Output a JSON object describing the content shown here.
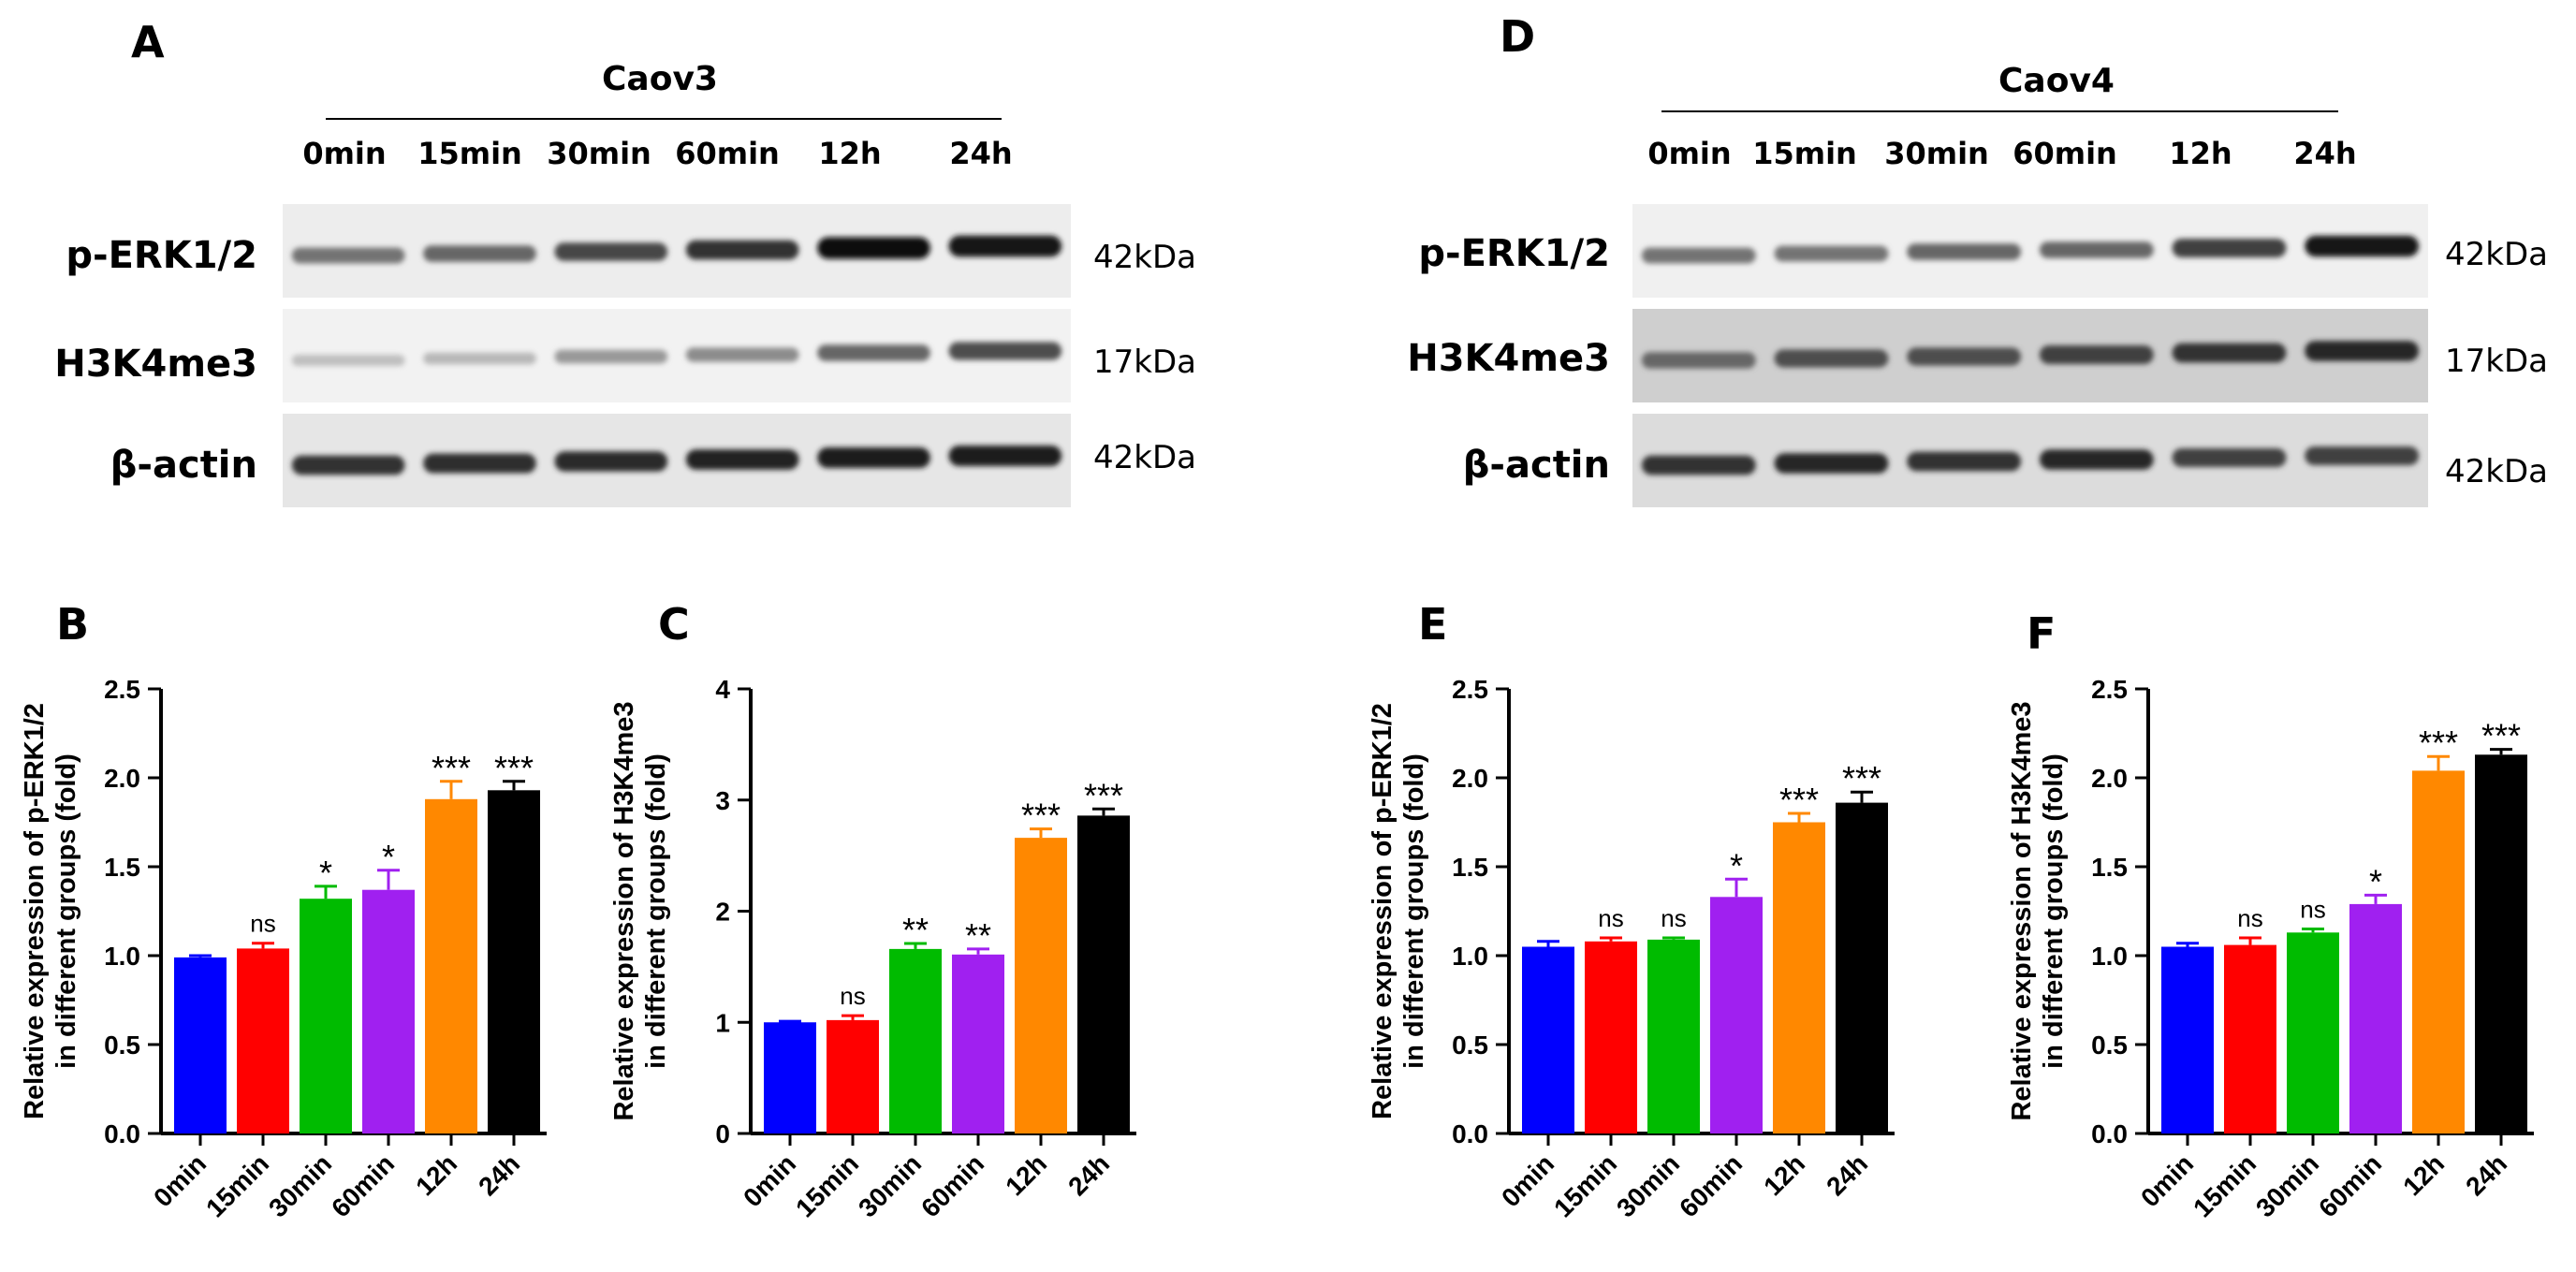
{
  "western_blots": [
    {
      "panel": "A",
      "cell_line": "Caov3",
      "lanes": [
        "0min",
        "15min",
        "30min",
        "60min",
        "12h",
        "24h"
      ],
      "rows": [
        {
          "protein": "p-ERK1/2",
          "size": "42kDa",
          "background": "#ededed",
          "intensity": [
            0.55,
            0.6,
            0.72,
            0.8,
            0.95,
            0.92
          ]
        },
        {
          "protein": "H3K4me3",
          "size": "17kDa",
          "background": "#f2f2f2",
          "intensity": [
            0.25,
            0.28,
            0.4,
            0.45,
            0.6,
            0.7
          ]
        },
        {
          "protein": "β-actin",
          "size": "42kDa",
          "background": "#e6e6e6",
          "intensity": [
            0.8,
            0.82,
            0.84,
            0.86,
            0.88,
            0.88
          ]
        }
      ]
    },
    {
      "panel": "D",
      "cell_line": "Caov4",
      "lanes": [
        "0min",
        "15min",
        "30min",
        "60min",
        "12h",
        "24h"
      ],
      "rows": [
        {
          "protein": "p-ERK1/2",
          "size": "42kDa",
          "background": "#f0f0f0",
          "intensity": [
            0.55,
            0.55,
            0.6,
            0.6,
            0.75,
            0.9
          ]
        },
        {
          "protein": "H3K4me3",
          "size": "17kDa",
          "background": "#cfcfcf",
          "intensity": [
            0.6,
            0.7,
            0.7,
            0.75,
            0.8,
            0.85
          ]
        },
        {
          "protein": "β-actin",
          "size": "42kDa",
          "background": "#dcdcdc",
          "intensity": [
            0.8,
            0.85,
            0.8,
            0.85,
            0.75,
            0.75
          ]
        }
      ]
    }
  ],
  "bar_colors": [
    "#0000ff",
    "#ff0000",
    "#00bb00",
    "#a020f0",
    "#ff8800",
    "#000000"
  ],
  "chart_data": [
    {
      "panel": "B",
      "type": "bar",
      "categories": [
        "0min",
        "15min",
        "30min",
        "60min",
        "12h",
        "24h"
      ],
      "values": [
        0.99,
        1.04,
        1.32,
        1.37,
        1.88,
        1.93
      ],
      "errors": [
        0.01,
        0.03,
        0.07,
        0.11,
        0.1,
        0.05
      ],
      "significance": [
        "",
        "ns",
        "*",
        "*",
        "***",
        "***"
      ],
      "ylabel_line1": "Relative expression of  p-ERK1/2",
      "ylabel_line2": "in different groups (fold)",
      "ylim": [
        0,
        2.5
      ],
      "ytick_labels": [
        "0.0",
        "0.5",
        "1.0",
        "1.5",
        "2.0",
        "2.5"
      ]
    },
    {
      "panel": "C",
      "type": "bar",
      "categories": [
        "0min",
        "15min",
        "30min",
        "60min",
        "12h",
        "24h"
      ],
      "values": [
        1.0,
        1.02,
        1.66,
        1.61,
        2.66,
        2.86
      ],
      "errors": [
        0.01,
        0.04,
        0.05,
        0.05,
        0.08,
        0.06
      ],
      "significance": [
        "",
        "ns",
        "**",
        "**",
        "***",
        "***"
      ],
      "ylabel_line1": "Relative expression of H3K4me3",
      "ylabel_line2": "in different groups (fold)",
      "ylim": [
        0,
        4
      ],
      "ytick_labels": [
        "0",
        "1",
        "2",
        "3",
        "4"
      ]
    },
    {
      "panel": "E",
      "type": "bar",
      "categories": [
        "0min",
        "15min",
        "30min",
        "60min",
        "12h",
        "24h"
      ],
      "values": [
        1.05,
        1.08,
        1.09,
        1.33,
        1.75,
        1.86
      ],
      "errors": [
        0.03,
        0.02,
        0.01,
        0.1,
        0.05,
        0.06
      ],
      "significance": [
        "",
        "ns",
        "ns",
        "*",
        "***",
        "***"
      ],
      "ylabel_line1": "Relative expression of  p-ERK1/2",
      "ylabel_line2": "in different groups (fold)",
      "ylim": [
        0,
        2.5
      ],
      "ytick_labels": [
        "0.0",
        "0.5",
        "1.0",
        "1.5",
        "2.0",
        "2.5"
      ]
    },
    {
      "panel": "F",
      "type": "bar",
      "categories": [
        "0min",
        "15min",
        "30min",
        "60min",
        "12h",
        "24h"
      ],
      "values": [
        1.05,
        1.06,
        1.13,
        1.29,
        2.04,
        2.13
      ],
      "errors": [
        0.02,
        0.04,
        0.02,
        0.05,
        0.08,
        0.03
      ],
      "significance": [
        "",
        "ns",
        "ns",
        "*",
        "***",
        "***"
      ],
      "ylabel_line1": "Relative expression of H3K4me3",
      "ylabel_line2": "in different groups (fold)",
      "ylim": [
        0,
        2.5
      ],
      "ytick_labels": [
        "0.0",
        "0.5",
        "1.0",
        "1.5",
        "2.0",
        "2.5"
      ]
    }
  ]
}
